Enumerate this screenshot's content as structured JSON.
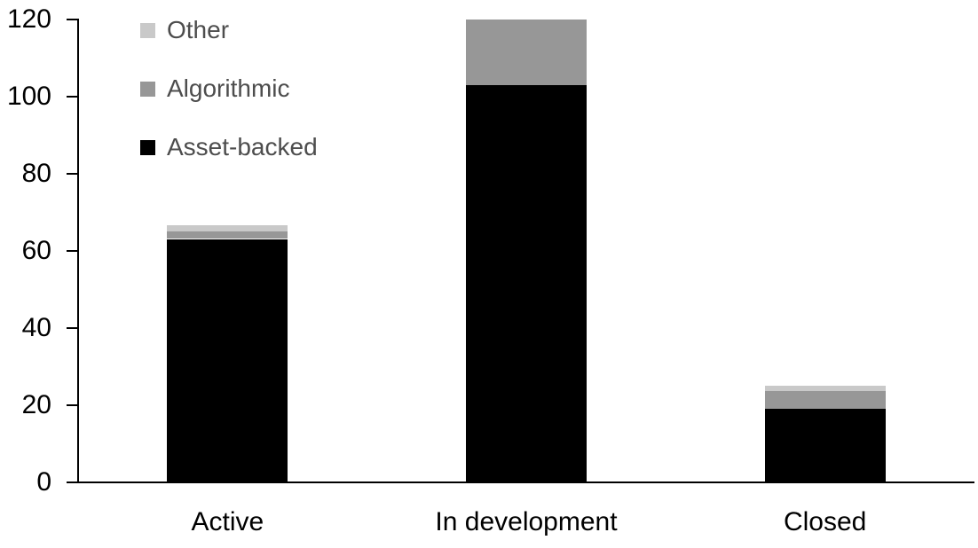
{
  "chart_data": {
    "type": "bar",
    "stacked": true,
    "title": "",
    "xlabel": "",
    "ylabel": "",
    "categories": [
      "Active",
      "In development",
      "Closed"
    ],
    "series": [
      {
        "name": "Asset-backed",
        "color": "#000000",
        "values": [
          63,
          103,
          19
        ]
      },
      {
        "name": "Algorithmic",
        "color": "#979797",
        "values": [
          2,
          17,
          4.5
        ]
      },
      {
        "name": "Other",
        "color": "#c9c9c9",
        "values": [
          1.5,
          0,
          1.5
        ]
      }
    ],
    "stack_totals": [
      66.5,
      120,
      25
    ],
    "ylim": [
      0,
      120
    ],
    "yticks": [
      0,
      20,
      40,
      60,
      80,
      100,
      120
    ],
    "grid": false,
    "legend_position": "top-left-inside",
    "legend_order": [
      "Other",
      "Algorithmic",
      "Asset-backed"
    ]
  },
  "colors": {
    "background": "#ffffff",
    "axis": "#000000",
    "tick_label_text": "#000000",
    "category_label_text": "#000000",
    "legend_text": "#4d4d4d"
  }
}
